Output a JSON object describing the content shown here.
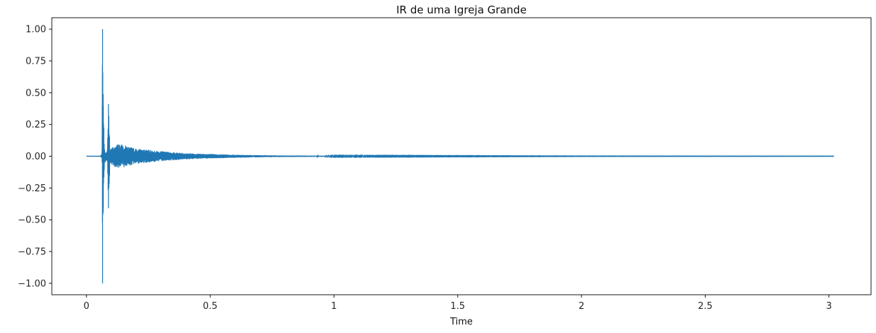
{
  "chart_data": {
    "type": "line",
    "title": "IR de uma Igreja Grande",
    "xlabel": "Time",
    "ylabel": "",
    "xlim": [
      -0.14,
      3.17
    ],
    "ylim": [
      -1.09,
      1.09
    ],
    "x_ticks": [
      0,
      0.5,
      1,
      1.5,
      2,
      2.5,
      3
    ],
    "x_tick_labels": [
      "0",
      "0.5",
      "1",
      "1.5",
      "2",
      "2.5",
      "3"
    ],
    "y_ticks": [
      1.0,
      0.75,
      0.5,
      0.25,
      0.0,
      -0.25,
      -0.5,
      -0.75,
      -1.0
    ],
    "y_tick_labels": [
      "1.00",
      "0.75",
      "0.50",
      "0.25",
      "0.00",
      "−0.25",
      "−0.50",
      "−0.75",
      "−1.00"
    ],
    "grid": false,
    "legend": "none",
    "line_color": "#1f77b4",
    "series": [
      {
        "duration": 3.02,
        "envelope": {
          "t": [
            0.0,
            0.055,
            0.063,
            0.065,
            0.068,
            0.073,
            0.08,
            0.085,
            0.089,
            0.095,
            0.12,
            0.13,
            0.2,
            0.3,
            0.4,
            0.5,
            0.6,
            0.7,
            0.8,
            1.0,
            1.5,
            2.0,
            3.02
          ],
          "amp": [
            0.0,
            0.0,
            0.02,
            1.0,
            0.4,
            0.06,
            0.03,
            0.06,
            0.41,
            0.06,
            0.09,
            0.1,
            0.06,
            0.04,
            0.025,
            0.018,
            0.012,
            0.008,
            0.006,
            0.003,
            0.002,
            0.001,
            0.0005
          ]
        }
      }
    ]
  }
}
